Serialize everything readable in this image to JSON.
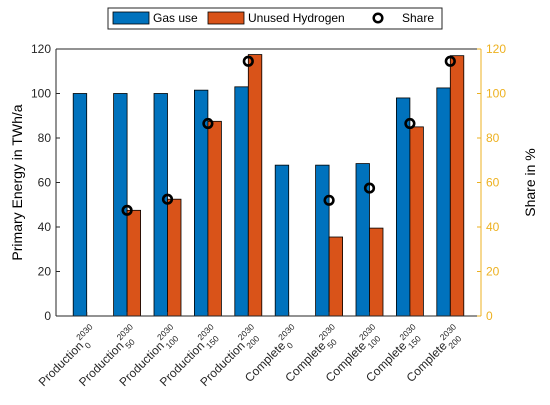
{
  "chart_data": {
    "type": "bar",
    "categories": [
      {
        "base": "Production",
        "sup": "2030",
        "sub": "0"
      },
      {
        "base": "Production",
        "sup": "2030",
        "sub": "50"
      },
      {
        "base": "Production",
        "sup": "2030",
        "sub": "100"
      },
      {
        "base": "Production",
        "sup": "2030",
        "sub": "150"
      },
      {
        "base": "Production",
        "sup": "2030",
        "sub": "200"
      },
      {
        "base": "Complete",
        "sup": "2030",
        "sub": "0"
      },
      {
        "base": "Complete",
        "sup": "2030",
        "sub": "50"
      },
      {
        "base": "Complete",
        "sup": "2030",
        "sub": "100"
      },
      {
        "base": "Complete",
        "sup": "2030",
        "sub": "150"
      },
      {
        "base": "Complete",
        "sup": "2030",
        "sub": "200"
      }
    ],
    "series": [
      {
        "name": "Gas use",
        "type": "bar",
        "axis": "left",
        "color": "#0072bd",
        "values": [
          100,
          100,
          100,
          101.5,
          103,
          67.8,
          67.8,
          68.5,
          98,
          102.5
        ]
      },
      {
        "name": "Unused Hydrogen",
        "type": "bar",
        "axis": "left",
        "color": "#d95319",
        "values": [
          0,
          47.5,
          52.5,
          87.5,
          117.5,
          0,
          35.5,
          39.5,
          85,
          117
        ]
      },
      {
        "name": "Share",
        "type": "scatter",
        "axis": "right",
        "color": "#000000",
        "values": [
          null,
          47.5,
          52.5,
          86.5,
          114.5,
          null,
          52,
          57.5,
          86.5,
          114.5
        ]
      }
    ],
    "ylabel": "Primary Energy in TWh/a",
    "y2label": "Share in %",
    "ylim": [
      0,
      120
    ],
    "y2lim": [
      0,
      120
    ],
    "yticks": [
      "0",
      "20",
      "40",
      "60",
      "80",
      "100",
      "120"
    ],
    "y2ticks": [
      "0",
      "20",
      "40",
      "60",
      "80",
      "100",
      "120"
    ],
    "right_axis_color": "#edb120",
    "legend": {
      "position": "top",
      "orientation": "horizontal",
      "entries": [
        "Gas use",
        "Unused Hydrogen",
        "Share"
      ]
    },
    "grid": false
  }
}
